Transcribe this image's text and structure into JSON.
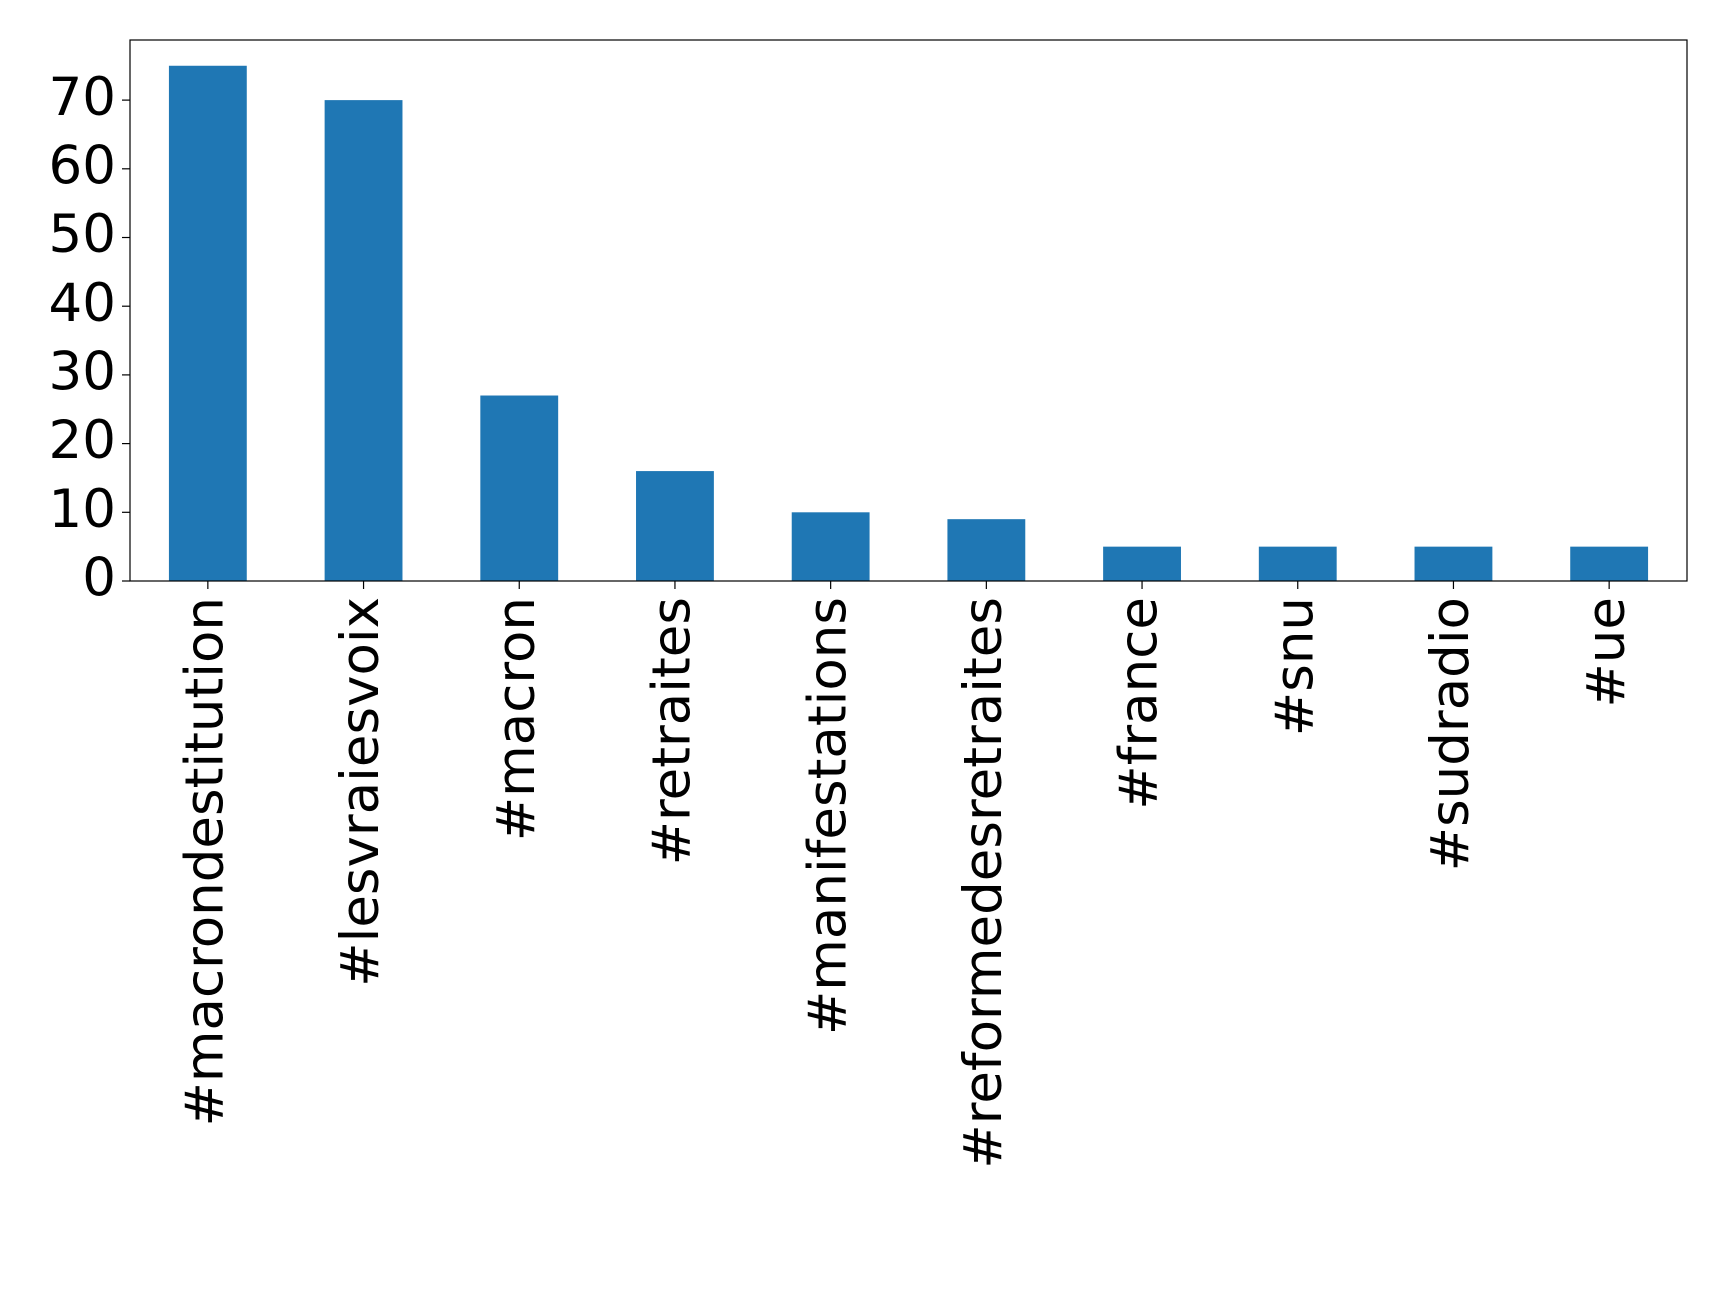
{
  "chart_data": {
    "type": "bar",
    "categories": [
      "#macrondestitution",
      "#lesvraiesvoix",
      "#macron",
      "#retraites",
      "#manifestations",
      "#reformedesretraites",
      "#france",
      "#snu",
      "#sudradio",
      "#ue"
    ],
    "values": [
      75,
      70,
      27,
      16,
      10,
      9,
      5,
      5,
      5,
      5
    ],
    "color": "#1f77b4",
    "ylim": [
      0,
      78.75
    ],
    "yticks": [
      0,
      10,
      20,
      30,
      40,
      50,
      60,
      70
    ],
    "grid": false
  }
}
